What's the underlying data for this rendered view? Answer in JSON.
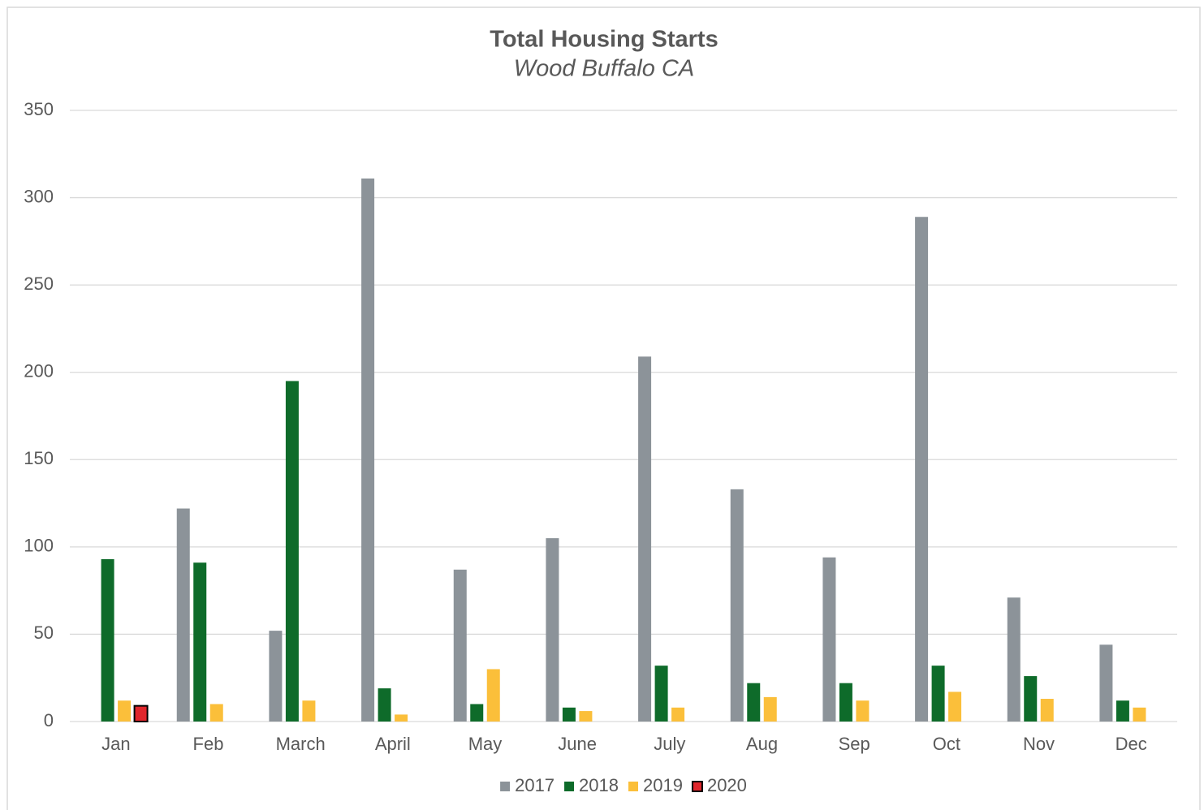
{
  "chart_data": {
    "type": "bar",
    "title": "Total Housing Starts",
    "subtitle": "Wood Buffalo CA",
    "categories": [
      "Jan",
      "Feb",
      "March",
      "April",
      "May",
      "June",
      "July",
      "Aug",
      "Sep",
      "Oct",
      "Nov",
      "Dec"
    ],
    "series": [
      {
        "name": "2017",
        "color": "#8c9399",
        "values": [
          null,
          122,
          52,
          311,
          87,
          105,
          209,
          133,
          94,
          289,
          71,
          44
        ]
      },
      {
        "name": "2018",
        "color": "#0e6b2a",
        "values": [
          93,
          91,
          195,
          19,
          10,
          8,
          32,
          22,
          22,
          32,
          26,
          12
        ]
      },
      {
        "name": "2019",
        "color": "#fbbf3a",
        "values": [
          12,
          10,
          12,
          4,
          30,
          6,
          8,
          14,
          12,
          17,
          13,
          8
        ]
      },
      {
        "name": "2020",
        "color": "#e0262c",
        "values": [
          9,
          null,
          null,
          null,
          null,
          null,
          null,
          null,
          null,
          null,
          null,
          null
        ]
      }
    ],
    "ylim": [
      0,
      350
    ],
    "yticks": [
      0,
      50,
      100,
      150,
      200,
      250,
      300,
      350
    ],
    "grid": true,
    "legend": "bottom"
  }
}
